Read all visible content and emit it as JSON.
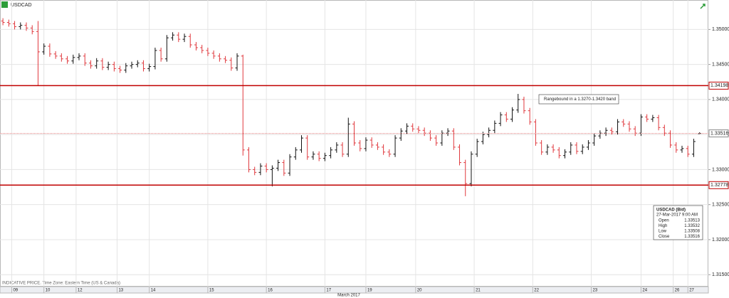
{
  "chart_data": {
    "type": "ohlc",
    "title": "USDCAD",
    "ylim": [
      1.3136,
      1.3542
    ],
    "yticks": [
      {
        "value": 1.315,
        "label": "1.31500"
      },
      {
        "value": 1.32,
        "label": "1.32000"
      },
      {
        "value": 1.325,
        "label": "1.32500"
      },
      {
        "value": 1.33,
        "label": "1.33000"
      },
      {
        "value": 1.335,
        "label": "1.33500"
      },
      {
        "value": 1.34,
        "label": "1.34000"
      },
      {
        "value": 1.345,
        "label": "1.34500"
      },
      {
        "value": 1.35,
        "label": "1.35000"
      }
    ],
    "xlim": [
      -0.5,
      120.5
    ],
    "xticks": [
      {
        "value": 1.5,
        "label": "09"
      },
      {
        "value": 7,
        "label": "10"
      },
      {
        "value": 12.5,
        "label": "12"
      },
      {
        "value": 19.5,
        "label": "13"
      },
      {
        "value": 25,
        "label": "14"
      },
      {
        "value": 35,
        "label": "15"
      },
      {
        "value": 45,
        "label": "16"
      },
      {
        "value": 55,
        "label": "17"
      },
      {
        "value": 62,
        "label": "19"
      },
      {
        "value": 70.5,
        "label": "20"
      },
      {
        "value": 80.5,
        "label": "21"
      },
      {
        "value": 90.5,
        "label": "22"
      },
      {
        "value": 100.5,
        "label": "23"
      },
      {
        "value": 109,
        "label": "24"
      },
      {
        "value": 114.5,
        "label": "26"
      },
      {
        "value": 117,
        "label": "27"
      }
    ],
    "x_label": "March 2017",
    "footnote": "INDICATIVE PRICE.  Time Zone: Eastern Time (US & Canada)",
    "grid": true,
    "up_color": "#111111",
    "down_color": "#e0393e",
    "open": [
      1.3512,
      1.351,
      1.3508,
      1.3504,
      1.3506,
      1.3502,
      1.3497,
      1.3468,
      1.3476,
      1.3465,
      1.3462,
      1.3458,
      1.3455,
      1.346,
      1.3462,
      1.3452,
      1.3448,
      1.3455,
      1.3446,
      1.345,
      1.3444,
      1.3442,
      1.3448,
      1.345,
      1.3452,
      1.3444,
      1.3447,
      1.347,
      1.3458,
      1.3488,
      1.3492,
      1.3486,
      1.349,
      1.3478,
      1.3474,
      1.347,
      1.3466,
      1.3462,
      1.3458,
      1.3456,
      1.3445,
      1.3462,
      1.3328,
      1.33,
      1.3296,
      1.3305,
      1.33,
      1.3302,
      1.331,
      1.3295,
      1.3318,
      1.3328,
      1.3345,
      1.3318,
      1.3322,
      1.3316,
      1.332,
      1.3328,
      1.3335,
      1.3322,
      1.3365,
      1.3338,
      1.333,
      1.3342,
      1.3335,
      1.3332,
      1.3325,
      1.3322,
      1.3345,
      1.3355,
      1.3362,
      1.3358,
      1.3356,
      1.3352,
      1.3345,
      1.3338,
      1.3352,
      1.3355,
      1.3332,
      1.331,
      1.328,
      1.3322,
      1.334,
      1.335,
      1.3356,
      1.3366,
      1.3378,
      1.3372,
      1.3385,
      1.34,
      1.3384,
      1.3368,
      1.3338,
      1.3325,
      1.3332,
      1.3328,
      1.332,
      1.3325,
      1.3335,
      1.3326,
      1.3332,
      1.3338,
      1.3348,
      1.3352,
      1.3356,
      1.3354,
      1.3368,
      1.3365,
      1.3358,
      1.3352,
      1.3375,
      1.3372,
      1.3374,
      1.336,
      1.3352,
      1.3335,
      1.3328,
      1.333,
      1.3322,
      1.33513
    ],
    "high": [
      1.3516,
      1.3514,
      1.3512,
      1.351,
      1.351,
      1.3506,
      1.3512,
      1.348,
      1.348,
      1.3469,
      1.3466,
      1.3462,
      1.3464,
      1.3466,
      1.3466,
      1.3456,
      1.3459,
      1.3459,
      1.3454,
      1.3454,
      1.3448,
      1.3452,
      1.3454,
      1.3456,
      1.3456,
      1.3451,
      1.3474,
      1.3474,
      1.3492,
      1.3496,
      1.3496,
      1.3494,
      1.3494,
      1.3482,
      1.3478,
      1.3474,
      1.347,
      1.3466,
      1.3462,
      1.346,
      1.3466,
      1.3464,
      1.3332,
      1.3304,
      1.3309,
      1.3309,
      1.3306,
      1.3314,
      1.3314,
      1.3322,
      1.3332,
      1.3349,
      1.3349,
      1.3326,
      1.3326,
      1.3324,
      1.3332,
      1.3339,
      1.3339,
      1.3374,
      1.3369,
      1.3342,
      1.3346,
      1.3346,
      1.3339,
      1.3336,
      1.3329,
      1.3349,
      1.3359,
      1.3366,
      1.3366,
      1.3362,
      1.336,
      1.3356,
      1.3349,
      1.3356,
      1.3359,
      1.3359,
      1.3336,
      1.3314,
      1.3326,
      1.3344,
      1.3354,
      1.336,
      1.337,
      1.3382,
      1.3382,
      1.3389,
      1.3408,
      1.3404,
      1.3388,
      1.3372,
      1.3342,
      1.3336,
      1.3336,
      1.3332,
      1.3329,
      1.3339,
      1.3339,
      1.3336,
      1.3342,
      1.3352,
      1.3356,
      1.336,
      1.336,
      1.3372,
      1.3372,
      1.3369,
      1.3362,
      1.3379,
      1.3379,
      1.3378,
      1.3378,
      1.3364,
      1.3356,
      1.3339,
      1.3334,
      1.3334,
      1.3344,
      1.33532
    ],
    "low": [
      1.3506,
      1.3504,
      1.35,
      1.35,
      1.3498,
      1.3493,
      1.342,
      1.3464,
      1.3461,
      1.3458,
      1.3454,
      1.3451,
      1.3451,
      1.3456,
      1.3448,
      1.3444,
      1.3444,
      1.3442,
      1.3442,
      1.344,
      1.3438,
      1.3438,
      1.3444,
      1.3446,
      1.344,
      1.344,
      1.3443,
      1.3454,
      1.3454,
      1.3484,
      1.3482,
      1.3482,
      1.3474,
      1.347,
      1.3466,
      1.3462,
      1.3458,
      1.3454,
      1.3452,
      1.3441,
      1.3441,
      1.332,
      1.3296,
      1.3292,
      1.3292,
      1.3296,
      1.3276,
      1.3298,
      1.3291,
      1.3291,
      1.3314,
      1.3324,
      1.3314,
      1.3314,
      1.3312,
      1.3312,
      1.3316,
      1.3324,
      1.3318,
      1.3318,
      1.3334,
      1.3326,
      1.3326,
      1.3331,
      1.3328,
      1.3321,
      1.3318,
      1.3318,
      1.3341,
      1.3351,
      1.3354,
      1.3352,
      1.3348,
      1.3341,
      1.3334,
      1.3334,
      1.3348,
      1.3328,
      1.3306,
      1.3262,
      1.3276,
      1.3318,
      1.3336,
      1.3346,
      1.3352,
      1.3362,
      1.3368,
      1.3368,
      1.3381,
      1.338,
      1.3364,
      1.3334,
      1.3321,
      1.3321,
      1.3324,
      1.3316,
      1.3316,
      1.3321,
      1.3322,
      1.3322,
      1.3328,
      1.3334,
      1.3344,
      1.3348,
      1.335,
      1.335,
      1.3361,
      1.3354,
      1.3348,
      1.3348,
      1.3368,
      1.3368,
      1.3356,
      1.3348,
      1.3331,
      1.3324,
      1.3324,
      1.3318,
      1.3318,
      1.33508
    ],
    "close": [
      1.351,
      1.3508,
      1.3504,
      1.3506,
      1.3502,
      1.3497,
      1.3468,
      1.3476,
      1.3465,
      1.3462,
      1.3458,
      1.3455,
      1.346,
      1.3462,
      1.3452,
      1.3448,
      1.3455,
      1.3446,
      1.345,
      1.3444,
      1.3442,
      1.3448,
      1.345,
      1.3452,
      1.3444,
      1.3447,
      1.347,
      1.3458,
      1.3488,
      1.3492,
      1.3486,
      1.349,
      1.3478,
      1.3474,
      1.347,
      1.3466,
      1.3462,
      1.3458,
      1.3456,
      1.3445,
      1.3462,
      1.3328,
      1.33,
      1.3296,
      1.3305,
      1.33,
      1.3302,
      1.331,
      1.3295,
      1.3318,
      1.3328,
      1.3345,
      1.3318,
      1.3322,
      1.3316,
      1.332,
      1.3328,
      1.3335,
      1.3322,
      1.3365,
      1.3338,
      1.333,
      1.3342,
      1.3335,
      1.3332,
      1.3325,
      1.3322,
      1.3345,
      1.3355,
      1.3362,
      1.3358,
      1.3356,
      1.3352,
      1.3345,
      1.3338,
      1.3352,
      1.3355,
      1.3332,
      1.331,
      1.328,
      1.3322,
      1.334,
      1.335,
      1.3356,
      1.3366,
      1.3378,
      1.3372,
      1.3385,
      1.34,
      1.3384,
      1.3368,
      1.3338,
      1.3325,
      1.3332,
      1.3328,
      1.332,
      1.3325,
      1.3335,
      1.3326,
      1.3332,
      1.3338,
      1.3348,
      1.3352,
      1.3356,
      1.3354,
      1.3368,
      1.3365,
      1.3358,
      1.3352,
      1.3375,
      1.3372,
      1.3374,
      1.336,
      1.3352,
      1.3335,
      1.3328,
      1.333,
      1.3322,
      1.334,
      1.33516
    ],
    "hlines": [
      {
        "value": 1.34198,
        "color": "#c00000"
      },
      {
        "value": 1.32778,
        "color": "#c00000"
      }
    ],
    "last_price_color": "#e88080",
    "annotation": "Rangebound in a 1.3270-1.3420 band",
    "info": {
      "title": "USDCAD (Bid)",
      "time": "27-Mar-2017 9:00 AM",
      "labels": [
        "Open",
        "High",
        "Low",
        "Close"
      ]
    }
  }
}
